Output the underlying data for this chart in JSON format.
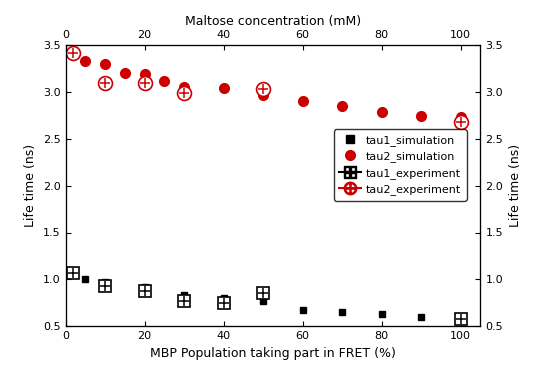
{
  "tau1_sim_x": [
    5,
    10,
    20,
    30,
    40,
    50,
    60,
    70,
    80,
    90,
    100
  ],
  "tau1_sim_y": [
    1.0,
    0.97,
    0.92,
    0.83,
    0.8,
    0.77,
    0.67,
    0.65,
    0.63,
    0.6,
    0.58
  ],
  "tau2_sim_x": [
    5,
    10,
    15,
    20,
    25,
    30,
    40,
    50,
    60,
    70,
    80,
    90,
    100
  ],
  "tau2_sim_y": [
    3.33,
    3.3,
    3.2,
    3.19,
    3.12,
    3.05,
    3.04,
    2.97,
    2.9,
    2.85,
    2.79,
    2.74,
    2.73
  ],
  "tau1_exp_x": [
    2,
    10,
    20,
    30,
    40,
    50,
    100
  ],
  "tau1_exp_y": [
    1.07,
    0.93,
    0.88,
    0.77,
    0.75,
    0.85,
    0.58
  ],
  "tau2_exp_x": [
    2,
    10,
    20,
    30,
    50,
    100
  ],
  "tau2_exp_y": [
    3.42,
    3.1,
    3.1,
    2.99,
    3.03,
    2.68
  ],
  "xlim": [
    0,
    105
  ],
  "ylim": [
    0.5,
    3.5
  ],
  "xlabel_bottom": "MBP Population taking part in FRET (%)",
  "xlabel_top": "Maltose concentration (mM)",
  "ylabel_left": "Life time (ns)",
  "ylabel_right": "Life time (ns)",
  "legend_labels": [
    "tau1_simulation",
    "tau2_simulation",
    "tau1_experiment",
    "tau2_experiment"
  ],
  "color_red": "#cc0000",
  "color_black": "#000000",
  "yticks": [
    0.5,
    1.0,
    1.5,
    2.0,
    2.5,
    3.0,
    3.5
  ],
  "xticks": [
    0,
    20,
    40,
    60,
    80,
    100
  ]
}
